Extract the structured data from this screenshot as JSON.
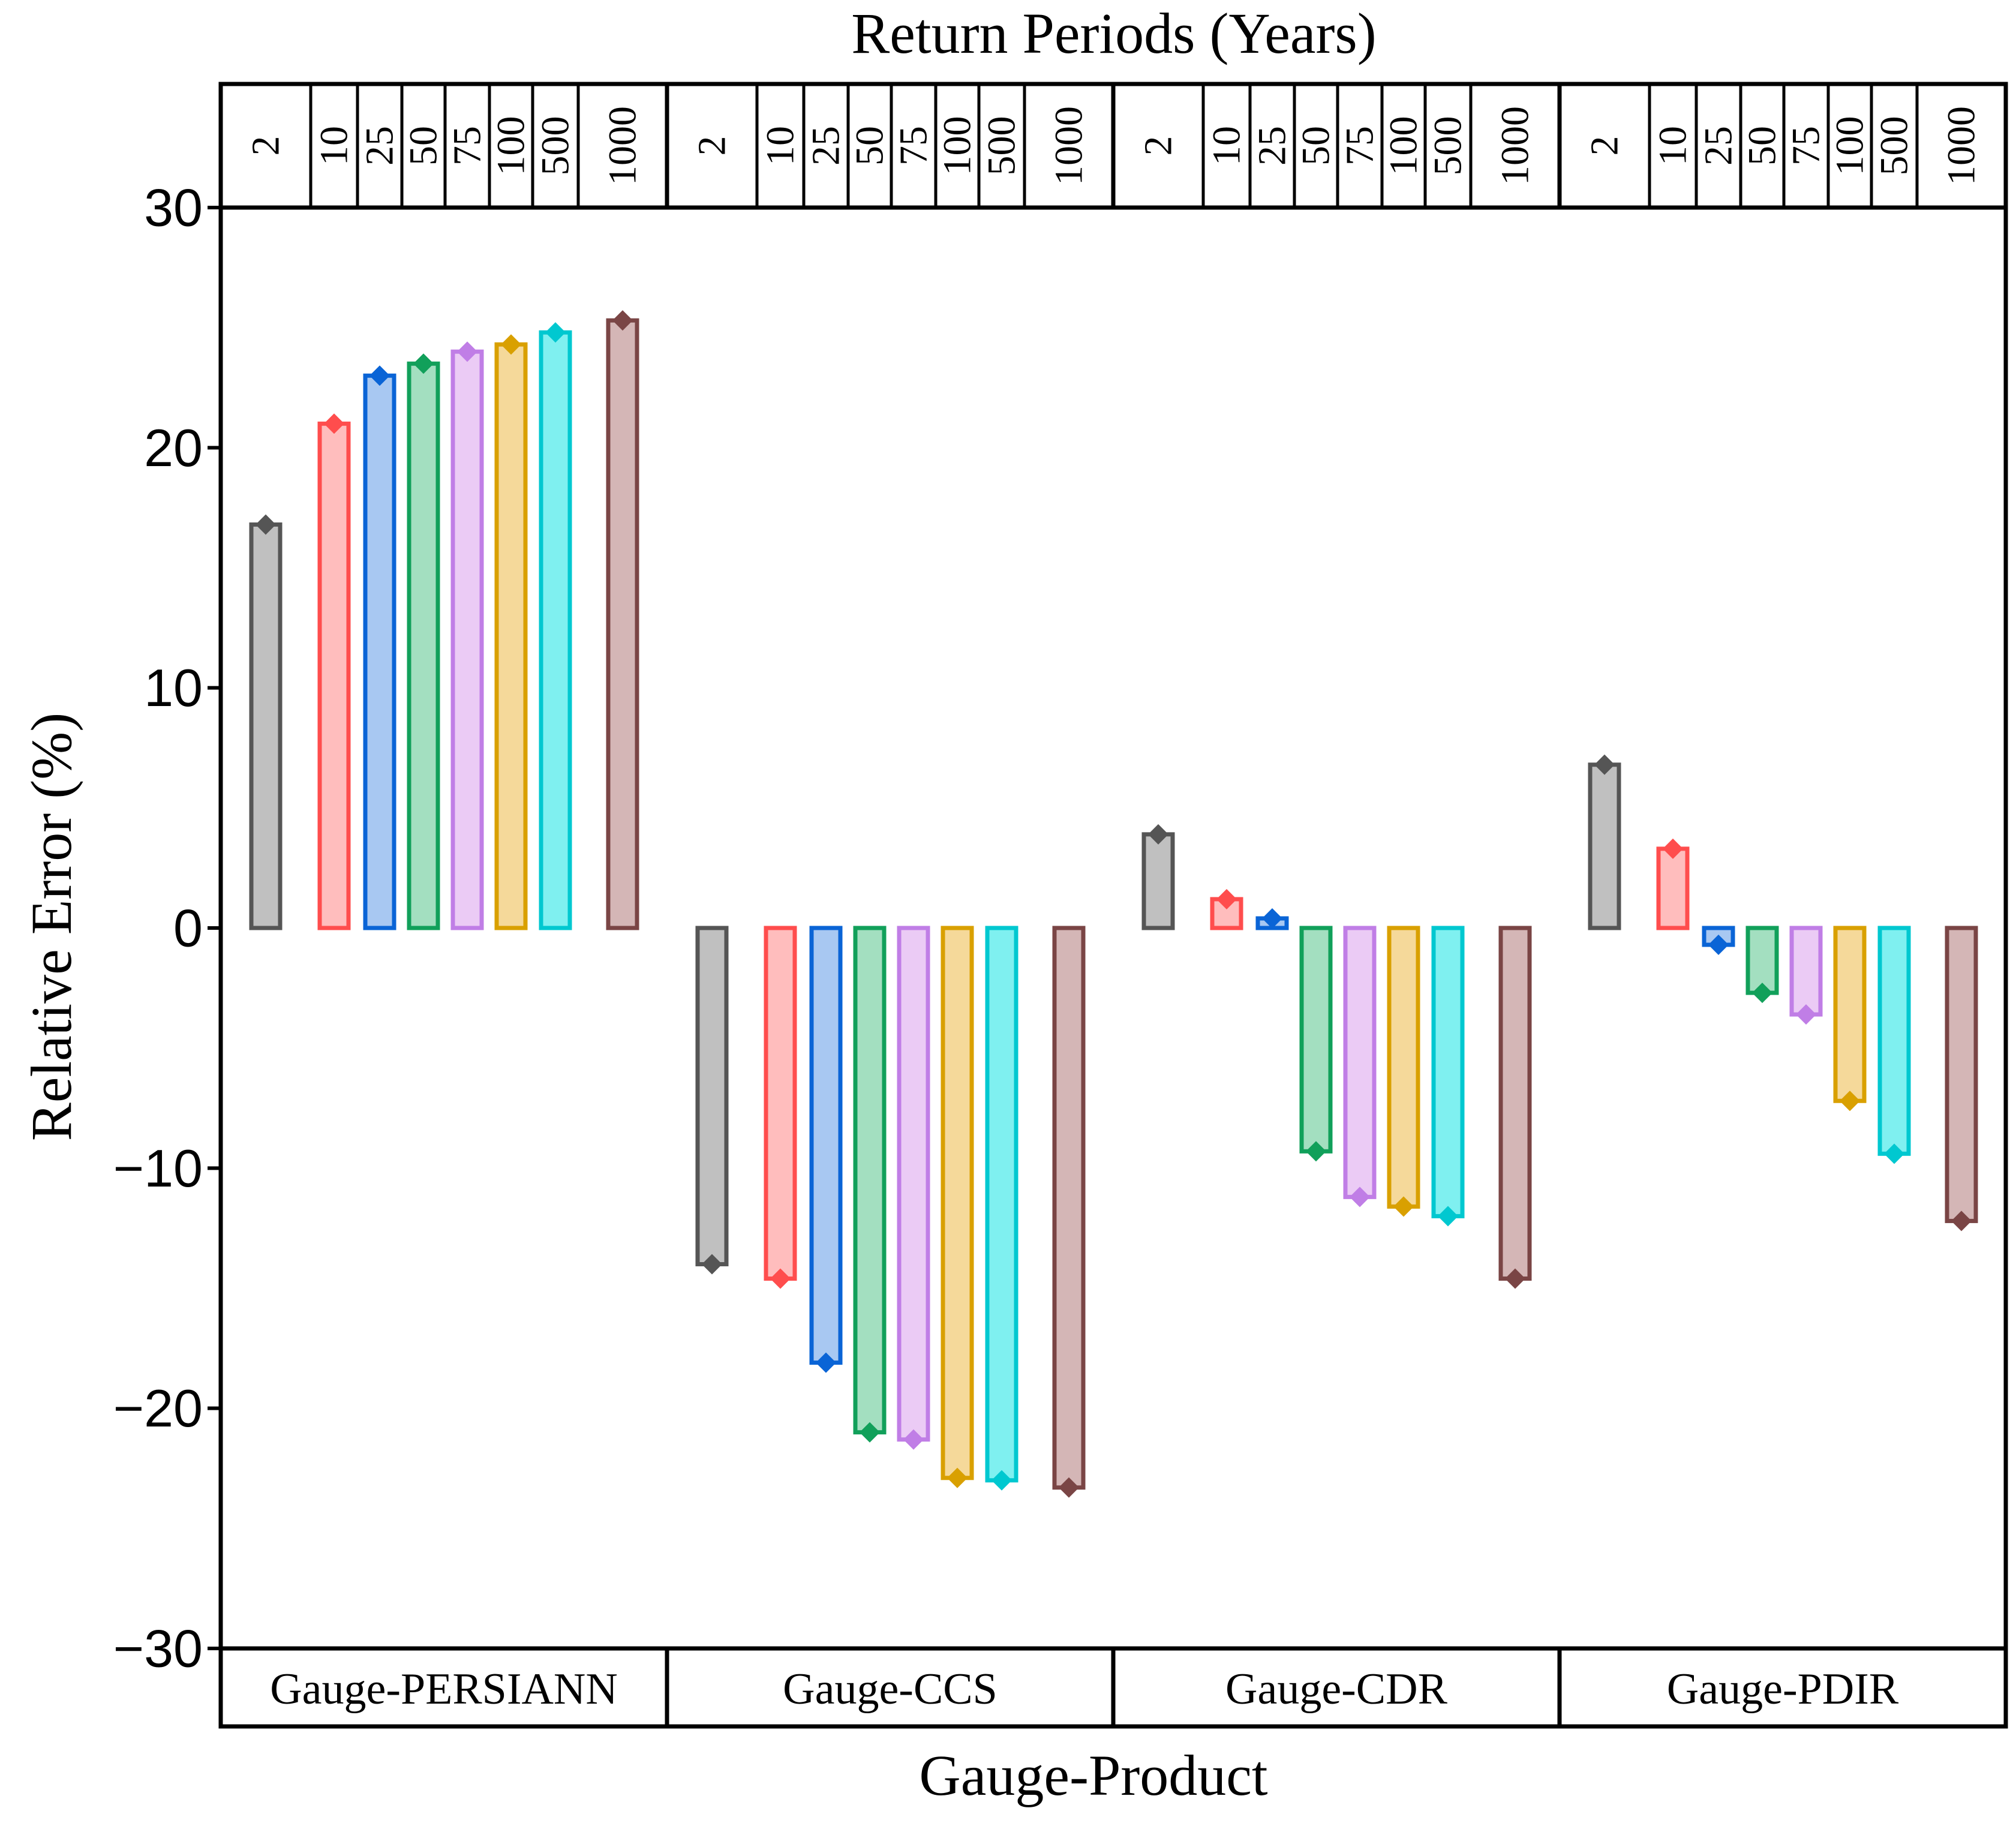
{
  "chart_data": {
    "type": "bar",
    "title": "Return Periods (Years)",
    "xlabel": "Gauge-Product",
    "ylabel": "Relative Error (%)",
    "ylim": [
      -30,
      30
    ],
    "yticks": [
      "30",
      "20",
      "10",
      "0",
      "−10",
      "−20",
      "−30"
    ],
    "ytick_values": [
      30,
      20,
      10,
      0,
      -10,
      -20,
      -30
    ],
    "grid": false,
    "groups": [
      "Gauge-PERSIANN",
      "Gauge-CCS",
      "Gauge-CDR",
      "Gauge-PDIR"
    ],
    "return_periods": [
      "2",
      "10",
      "25",
      "50",
      "75",
      "100",
      "500",
      "1000"
    ],
    "series": [
      {
        "name": "2",
        "values": [
          16.8,
          -14.0,
          3.9,
          6.8
        ]
      },
      {
        "name": "10",
        "values": [
          21.0,
          -14.6,
          1.2,
          3.3
        ]
      },
      {
        "name": "25",
        "values": [
          23.0,
          -18.1,
          0.4,
          -0.7
        ]
      },
      {
        "name": "50",
        "values": [
          23.5,
          -21.0,
          -9.3,
          -2.7
        ]
      },
      {
        "name": "75",
        "values": [
          24.0,
          -21.3,
          -11.2,
          -3.6
        ]
      },
      {
        "name": "100",
        "values": [
          24.3,
          -22.9,
          -11.6,
          -7.2
        ]
      },
      {
        "name": "500",
        "values": [
          24.8,
          -23.0,
          -12.0,
          -9.4
        ]
      },
      {
        "name": "1000",
        "values": [
          25.3,
          -23.3,
          -14.6,
          -12.2
        ]
      }
    ],
    "colors": [
      {
        "stroke": "#555555",
        "fill": "#c0c0c0"
      },
      {
        "stroke": "#ff4d4d",
        "fill": "#ffbdbd"
      },
      {
        "stroke": "#0a64d6",
        "fill": "#a8c8f2"
      },
      {
        "stroke": "#11a05a",
        "fill": "#a3dfc0"
      },
      {
        "stroke": "#c07ee6",
        "fill": "#ebcbf5"
      },
      {
        "stroke": "#d9a000",
        "fill": "#f5d99a"
      },
      {
        "stroke": "#00c8d0",
        "fill": "#7ff0f0"
      },
      {
        "stroke": "#7a4545",
        "fill": "#d4b6b6"
      }
    ]
  }
}
